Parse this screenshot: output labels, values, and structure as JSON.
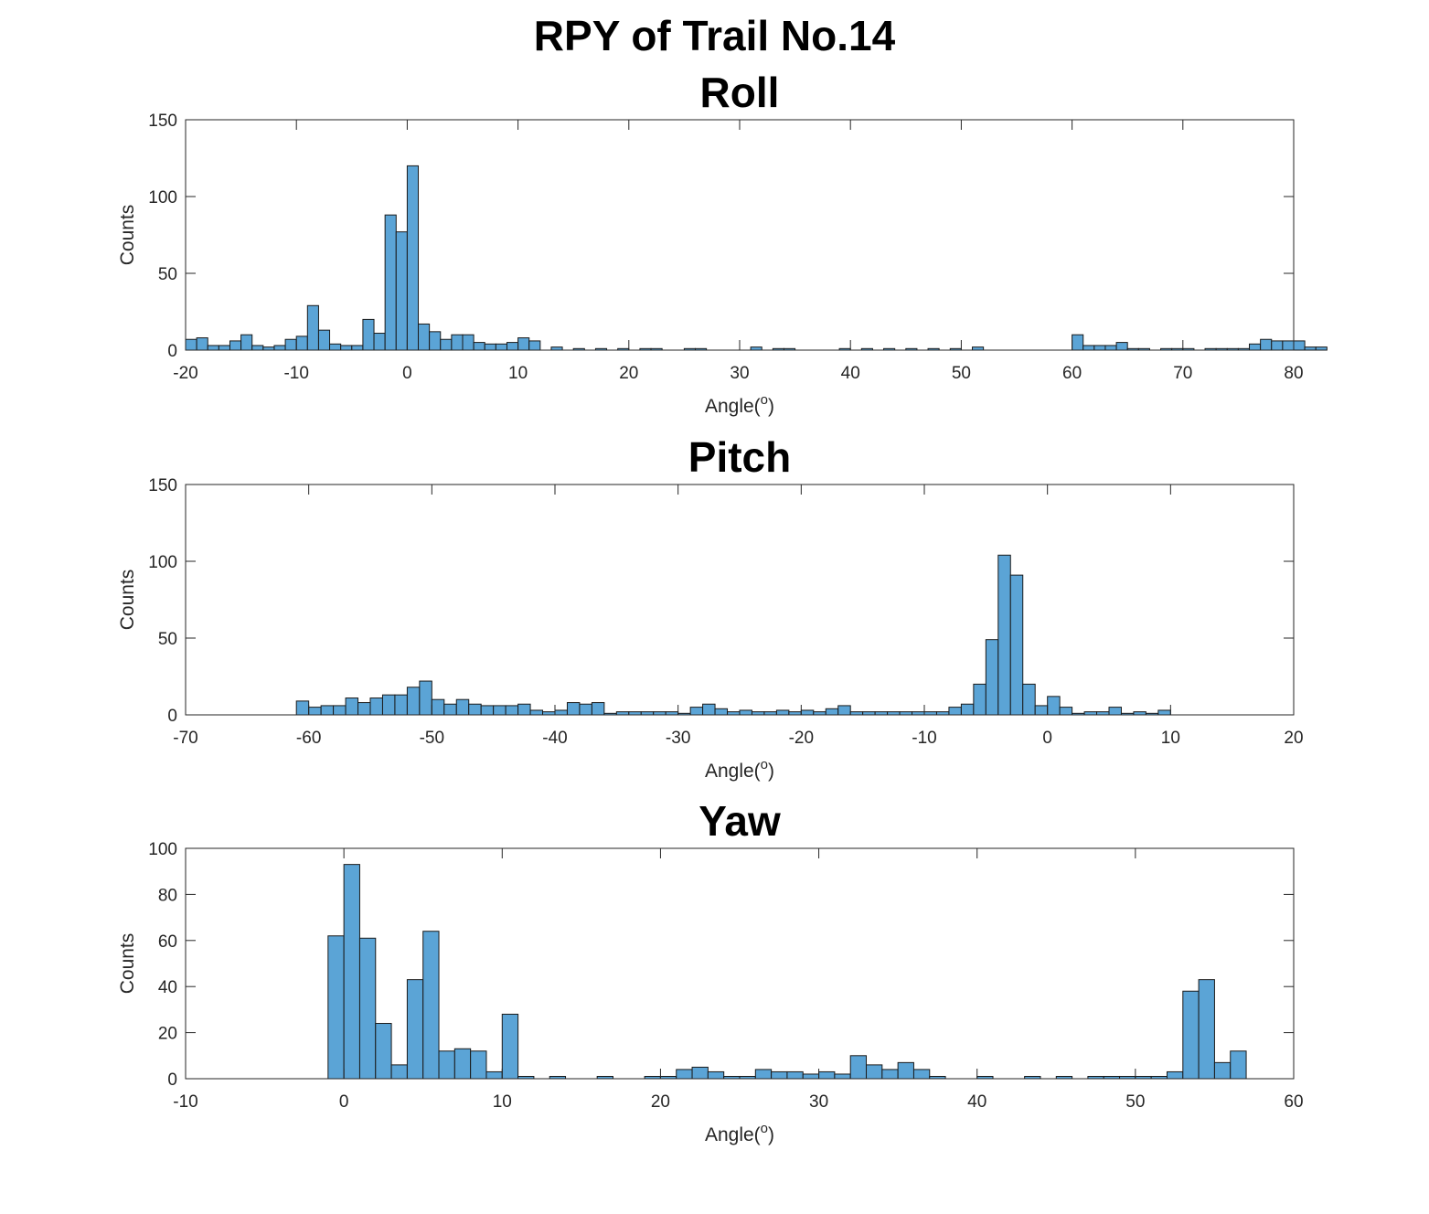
{
  "figure": {
    "title": "RPY of Trail No.14"
  },
  "colors": {
    "bar_fill": "#5BA4D6",
    "bar_edge": "#1a1a1a",
    "axis": "#262626"
  },
  "chart_data": [
    {
      "type": "bar",
      "title": "Roll",
      "xlabel": "Angle(°)",
      "ylabel": "Counts",
      "xlim": [
        -20,
        80
      ],
      "ylim": [
        0,
        150
      ],
      "xticks": [
        -20,
        -10,
        0,
        10,
        20,
        30,
        40,
        50,
        60,
        70,
        80
      ],
      "yticks": [
        0,
        50,
        100,
        150
      ],
      "grid": false,
      "bin_start": -20,
      "bin_width": 1,
      "counts": [
        7,
        8,
        3,
        3,
        6,
        10,
        3,
        2,
        3,
        7,
        9,
        29,
        13,
        4,
        3,
        3,
        20,
        11,
        88,
        77,
        120,
        17,
        12,
        7,
        10,
        10,
        5,
        4,
        4,
        5,
        8,
        6,
        0,
        2,
        0,
        1,
        0,
        1,
        0,
        1,
        0,
        1,
        1,
        0,
        0,
        1,
        1,
        0,
        0,
        0,
        0,
        2,
        0,
        1,
        1,
        0,
        0,
        0,
        0,
        1,
        0,
        1,
        0,
        1,
        0,
        1,
        0,
        1,
        0,
        1,
        0,
        2,
        0,
        0,
        0,
        0,
        0,
        0,
        0,
        0,
        10,
        3,
        3,
        3,
        5,
        1,
        1,
        0,
        1,
        1,
        1,
        0,
        1,
        1,
        1,
        1,
        4,
        7,
        6,
        6,
        6,
        2,
        2
      ]
    },
    {
      "type": "bar",
      "title": "Pitch",
      "xlabel": "Angle(°)",
      "ylabel": "Counts",
      "xlim": [
        -70,
        20
      ],
      "ylim": [
        0,
        150
      ],
      "xticks": [
        -70,
        -60,
        -50,
        -40,
        -30,
        -20,
        -10,
        0,
        10,
        20
      ],
      "yticks": [
        0,
        50,
        100,
        150
      ],
      "grid": false,
      "bin_start": -61,
      "bin_width": 1,
      "counts": [
        9,
        5,
        6,
        6,
        11,
        8,
        11,
        13,
        13,
        18,
        22,
        10,
        7,
        10,
        7,
        6,
        6,
        6,
        7,
        3,
        2,
        3,
        8,
        7,
        8,
        1,
        2,
        2,
        2,
        2,
        2,
        1,
        5,
        7,
        4,
        2,
        3,
        2,
        2,
        3,
        2,
        3,
        2,
        4,
        6,
        2,
        2,
        2,
        2,
        2,
        2,
        2,
        2,
        5,
        7,
        20,
        49,
        104,
        91,
        20,
        6,
        12,
        5,
        1,
        2,
        2,
        5,
        1,
        2,
        1,
        3
      ]
    },
    {
      "type": "bar",
      "title": "Yaw",
      "xlabel": "Angle(°)",
      "ylabel": "Counts",
      "xlim": [
        -10,
        60
      ],
      "ylim": [
        0,
        100
      ],
      "xticks": [
        -10,
        0,
        10,
        20,
        30,
        40,
        50,
        60
      ],
      "yticks": [
        0,
        20,
        40,
        60,
        80,
        100
      ],
      "grid": false,
      "bin_start": -1,
      "bin_width": 1,
      "counts": [
        62,
        93,
        61,
        24,
        6,
        43,
        64,
        12,
        13,
        12,
        3,
        28,
        1,
        0,
        1,
        0,
        0,
        1,
        0,
        0,
        1,
        1,
        4,
        5,
        3,
        1,
        1,
        4,
        3,
        3,
        2,
        3,
        2,
        10,
        6,
        4,
        7,
        4,
        1,
        0,
        0,
        1,
        0,
        0,
        1,
        0,
        1,
        0,
        1,
        1,
        1,
        1,
        1,
        3,
        38,
        43,
        7,
        12
      ]
    }
  ]
}
